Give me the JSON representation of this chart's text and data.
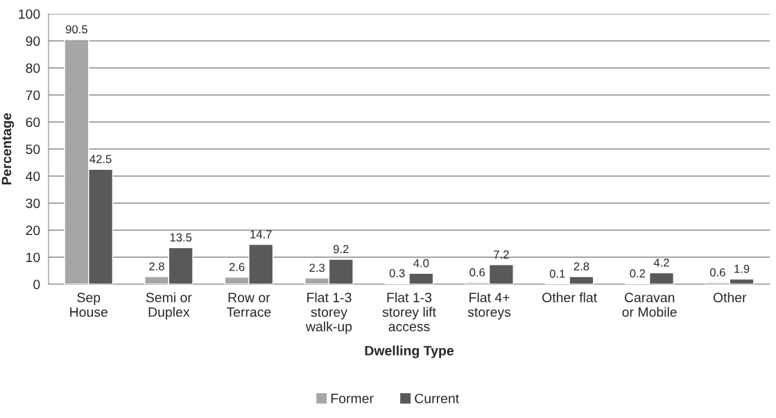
{
  "chart_data": {
    "type": "bar",
    "xlabel": "Dwelling Type",
    "ylabel": "Percentage",
    "categories": [
      "Sep\nHouse",
      "Semi or\nDuplex",
      "Row or\nTerrace",
      "Flat 1-3\nstorey\nwalk-up",
      "Flat 1-3\nstorey lift\naccess",
      "Flat 4+\nstoreys",
      "Other flat",
      "Caravan\nor Mobile",
      "Other"
    ],
    "series": [
      {
        "name": "Former",
        "color": "#a6a6a6",
        "values": [
          90.5,
          2.8,
          2.6,
          2.3,
          0.3,
          0.6,
          0.1,
          0.2,
          0.6
        ],
        "value_labels": [
          "90.5",
          "2.8",
          "2.6",
          "2.3",
          "0.3",
          "0.6",
          "0.1",
          "0.2",
          "0.6"
        ]
      },
      {
        "name": "Current",
        "color": "#595959",
        "values": [
          42.5,
          13.5,
          14.7,
          9.2,
          4.0,
          7.2,
          2.8,
          4.2,
          1.9
        ],
        "value_labels": [
          "42.5",
          "13.5",
          "14.7",
          "9.2",
          "4.0",
          "7.2",
          "2.8",
          "4.2",
          "1.9"
        ]
      }
    ],
    "ylim": [
      0,
      100
    ],
    "yticks": [
      0,
      10,
      20,
      30,
      40,
      50,
      60,
      70,
      80,
      90,
      100
    ],
    "grid": "y",
    "legend": "bottom"
  }
}
